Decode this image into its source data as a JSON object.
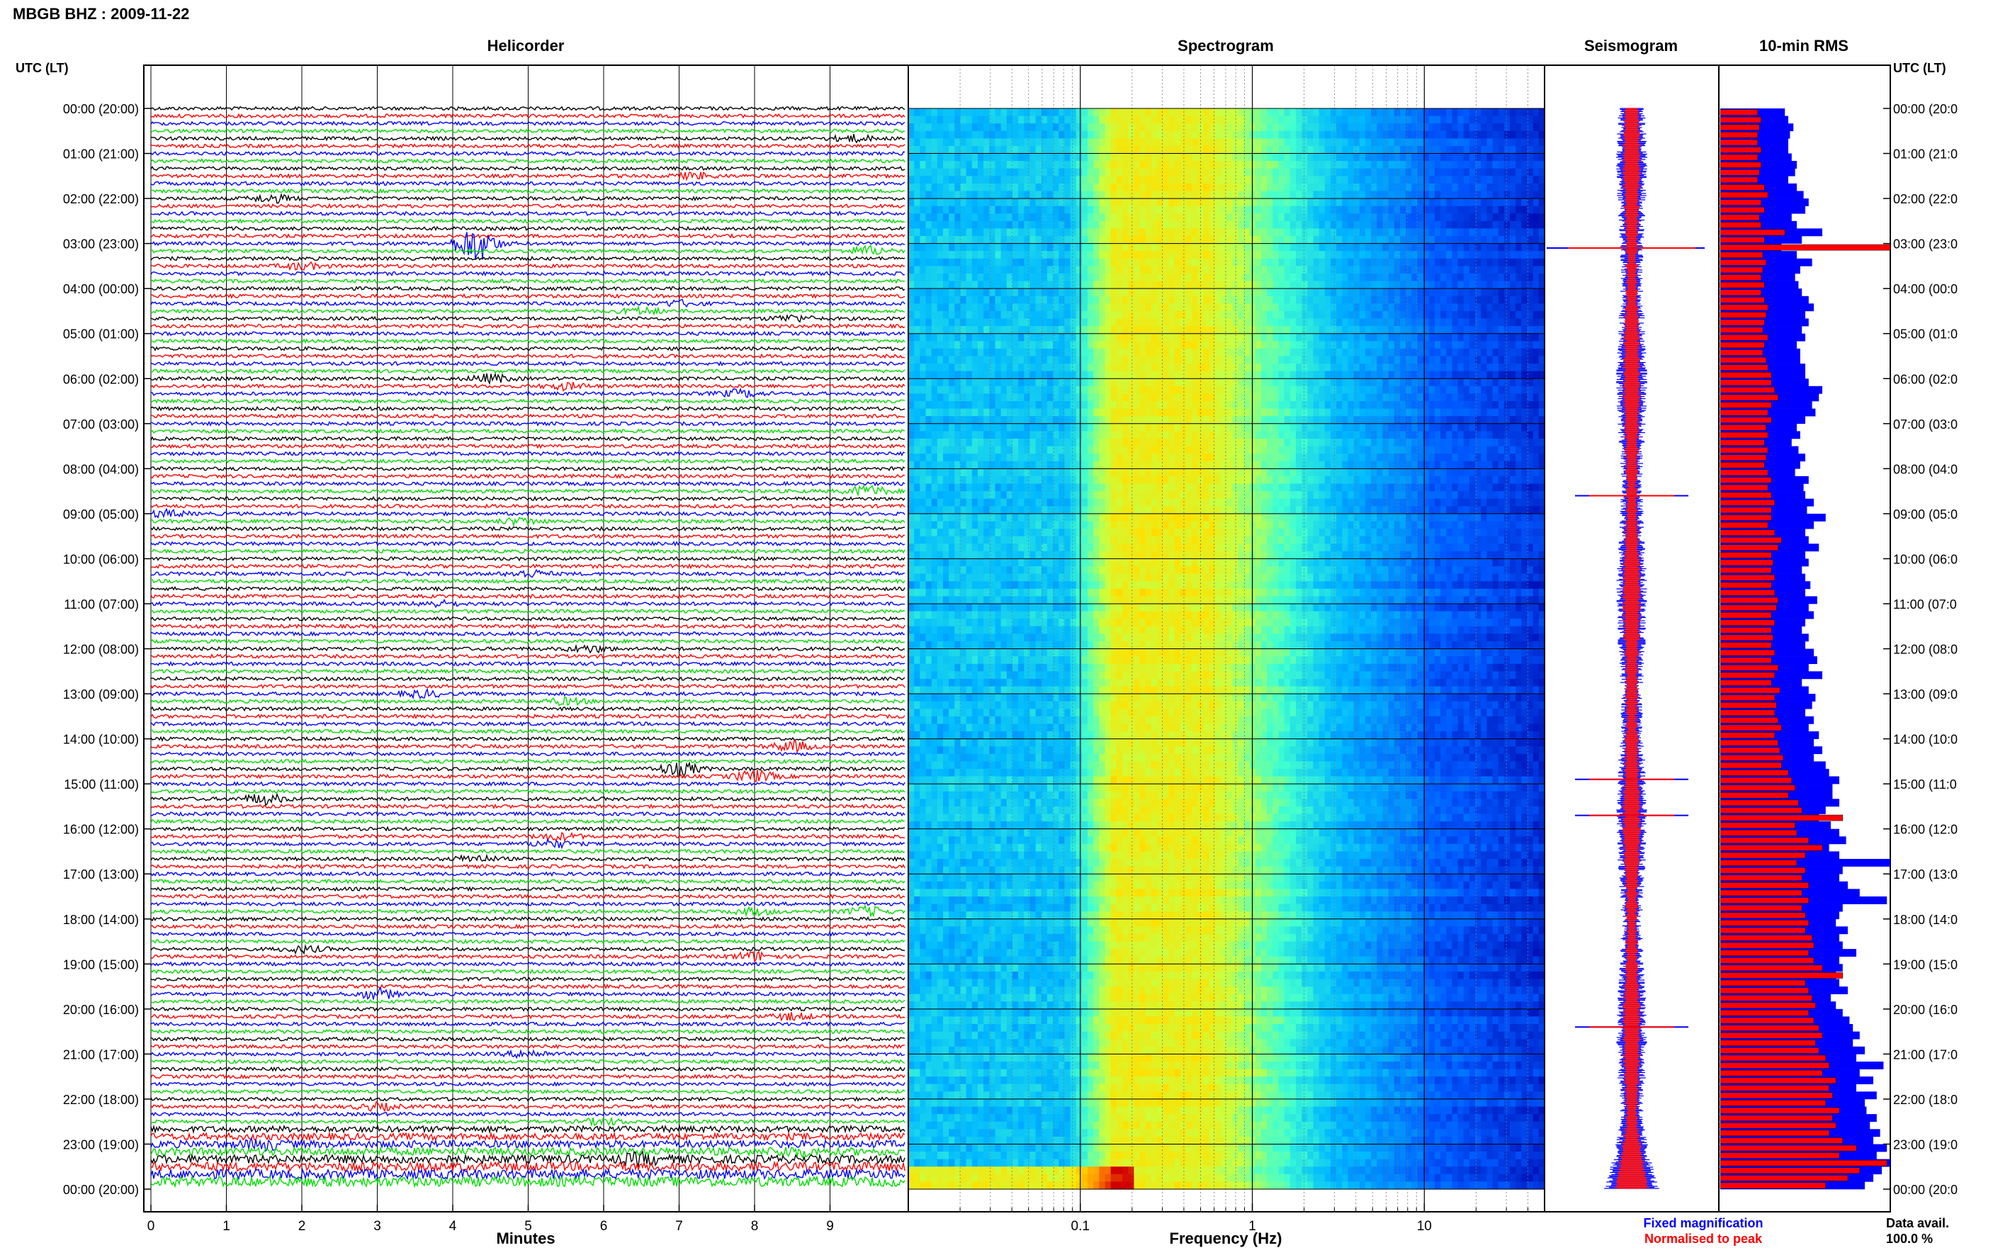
{
  "header": {
    "station_title": "MBGB BHZ : 2009-11-22"
  },
  "panels": {
    "helicorder": "Helicorder",
    "spectrogram": "Spectrogram",
    "seismogram": "Seismogram",
    "rms": "10-min RMS"
  },
  "axes": {
    "left_time_label": "UTC (LT)",
    "right_time_label": "UTC (LT)",
    "minutes_label": "Minutes",
    "frequency_label": "Frequency (Hz)"
  },
  "time_ticks": [
    "00:00 (20:00)",
    "01:00 (21:00)",
    "02:00 (22:00)",
    "03:00 (23:00)",
    "04:00 (00:00)",
    "05:00 (01:00)",
    "06:00 (02:00)",
    "07:00 (03:00)",
    "08:00 (04:00)",
    "09:00 (05:00)",
    "10:00 (06:00)",
    "11:00 (07:00)",
    "12:00 (08:00)",
    "13:00 (09:00)",
    "14:00 (10:00)",
    "15:00 (11:00)",
    "16:00 (12:00)",
    "17:00 (13:00)",
    "18:00 (14:00)",
    "19:00 (15:00)",
    "20:00 (16:00)",
    "21:00 (17:00)",
    "22:00 (18:00)",
    "23:00 (19:00)",
    "00:00 (20:00)"
  ],
  "right_time_ticks": [
    "00:00 (20:0",
    "01:00 (21:0",
    "02:00 (22:0",
    "03:00 (23:0",
    "04:00 (00:0",
    "05:00 (01:0",
    "06:00 (02:0",
    "07:00 (03:0",
    "08:00 (04:0",
    "09:00 (05:0",
    "10:00 (06:0",
    "11:00 (07:0",
    "12:00 (08:0",
    "13:00 (09:0",
    "14:00 (10:0",
    "15:00 (11:0",
    "16:00 (12:0",
    "17:00 (13:0",
    "18:00 (14:0",
    "19:00 (15:0",
    "20:00 (16:0",
    "21:00 (17:0",
    "22:00 (18:0",
    "23:00 (19:0",
    "00:00 (20:0"
  ],
  "legend": {
    "fixed": "Fixed magnification",
    "normalised": "Normalised to peak",
    "data_avail_label": "Data avail.",
    "data_avail_value": "100.0 %"
  },
  "colors": {
    "trace_cycle": [
      "#000000",
      "#ff0000",
      "#0000ff",
      "#00dd00"
    ],
    "fixed": "#0000ff",
    "normalised": "#ff0000"
  },
  "chart_data": [
    {
      "type": "line",
      "panel": "helicorder",
      "xlabel": "Minutes",
      "x_ticks": [
        "0",
        "1",
        "2",
        "3",
        "4",
        "5",
        "6",
        "7",
        "8",
        "9"
      ],
      "xlim": [
        0,
        10
      ],
      "rows_per_hour": 6,
      "bursts": [
        {
          "row": 4,
          "minute": 9.3,
          "amp": 1.6
        },
        {
          "row": 9,
          "minute": 7.2,
          "amp": 1.5
        },
        {
          "row": 12,
          "minute": 1.6,
          "amp": 1.8
        },
        {
          "row": 18,
          "minute": 4.3,
          "amp": 9.0
        },
        {
          "row": 19,
          "minute": 9.5,
          "amp": 2.2
        },
        {
          "row": 21,
          "minute": 2.0,
          "amp": 1.6
        },
        {
          "row": 26,
          "minute": 7.0,
          "amp": 1.4
        },
        {
          "row": 27,
          "minute": 6.5,
          "amp": 1.6
        },
        {
          "row": 28,
          "minute": 8.5,
          "amp": 1.6
        },
        {
          "row": 36,
          "minute": 4.5,
          "amp": 2.0
        },
        {
          "row": 37,
          "minute": 5.5,
          "amp": 1.6
        },
        {
          "row": 38,
          "minute": 7.8,
          "amp": 1.8
        },
        {
          "row": 51,
          "minute": 9.5,
          "amp": 2.5
        },
        {
          "row": 54,
          "minute": 0.2,
          "amp": 1.6
        },
        {
          "row": 55,
          "minute": 4.9,
          "amp": 1.6
        },
        {
          "row": 62,
          "minute": 5.0,
          "amp": 1.7
        },
        {
          "row": 66,
          "minute": 3.8,
          "amp": 1.4
        },
        {
          "row": 72,
          "minute": 5.8,
          "amp": 1.6
        },
        {
          "row": 78,
          "minute": 3.6,
          "amp": 1.7
        },
        {
          "row": 79,
          "minute": 5.5,
          "amp": 1.6
        },
        {
          "row": 85,
          "minute": 8.5,
          "amp": 2.4
        },
        {
          "row": 88,
          "minute": 7.0,
          "amp": 3.5
        },
        {
          "row": 89,
          "minute": 8.0,
          "amp": 2.8
        },
        {
          "row": 92,
          "minute": 1.5,
          "amp": 2.6
        },
        {
          "row": 97,
          "minute": 5.4,
          "amp": 1.8
        },
        {
          "row": 98,
          "minute": 5.3,
          "amp": 1.8
        },
        {
          "row": 100,
          "minute": 4.3,
          "amp": 1.7
        },
        {
          "row": 107,
          "minute": 8.0,
          "amp": 1.6
        },
        {
          "row": 107,
          "minute": 9.5,
          "amp": 2.2
        },
        {
          "row": 112,
          "minute": 2.0,
          "amp": 1.6
        },
        {
          "row": 113,
          "minute": 8.0,
          "amp": 2.2
        },
        {
          "row": 118,
          "minute": 3.0,
          "amp": 2.6
        },
        {
          "row": 121,
          "minute": 8.5,
          "amp": 1.6
        },
        {
          "row": 126,
          "minute": 5.0,
          "amp": 1.8
        },
        {
          "row": 133,
          "minute": 3.0,
          "amp": 1.7
        },
        {
          "row": 135,
          "minute": 6.0,
          "amp": 1.6
        },
        {
          "row": 138,
          "minute": 1.5,
          "amp": 2.0
        },
        {
          "row": 139,
          "minute": 8.5,
          "amp": 1.6
        },
        {
          "row": 140,
          "minute": 6.5,
          "amp": 2.0
        }
      ]
    },
    {
      "type": "heatmap",
      "panel": "spectrogram",
      "xlabel": "Frequency (Hz)",
      "x_scale": "log",
      "xlim": [
        0.01,
        50
      ],
      "x_ticks": [
        0.1,
        1,
        10
      ],
      "x_tick_labels": [
        "0.1",
        "1",
        "10"
      ],
      "peak_band_hz": [
        0.15,
        0.6
      ],
      "colormap": [
        "#0000a8",
        "#0058ff",
        "#00b8ff",
        "#40ffd0",
        "#c8ff40",
        "#ffe000",
        "#ff8000",
        "#d00000"
      ]
    },
    {
      "type": "line",
      "panel": "seismogram",
      "series": [
        {
          "name": "Fixed magnification",
          "color": "#0000ff"
        },
        {
          "name": "Normalised to peak",
          "color": "#ff0000"
        }
      ],
      "spikes_hour": [
        3.1,
        8.6,
        14.9,
        15.7,
        20.4
      ]
    },
    {
      "type": "bar",
      "panel": "rms",
      "series": [
        {
          "name": "Fixed magnification",
          "color": "#0000ff",
          "values": [
            0.38,
            0.4,
            0.43,
            0.41,
            0.4,
            0.4,
            0.42,
            0.45,
            0.44,
            0.4,
            0.45,
            0.49,
            0.52,
            0.5,
            0.42,
            0.45,
            0.6,
            0.48,
            0.36,
            0.45,
            0.54,
            0.47,
            0.44,
            0.46,
            0.48,
            0.52,
            0.55,
            0.5,
            0.52,
            0.48,
            0.5,
            0.45,
            0.47,
            0.47,
            0.5,
            0.5,
            0.52,
            0.6,
            0.58,
            0.54,
            0.56,
            0.5,
            0.45,
            0.47,
            0.42,
            0.46,
            0.5,
            0.47,
            0.44,
            0.52,
            0.49,
            0.5,
            0.55,
            0.51,
            0.62,
            0.55,
            0.5,
            0.52,
            0.58,
            0.5,
            0.52,
            0.48,
            0.5,
            0.53,
            0.5,
            0.57,
            0.52,
            0.55,
            0.5,
            0.48,
            0.52,
            0.5,
            0.55,
            0.57,
            0.52,
            0.6,
            0.48,
            0.52,
            0.56,
            0.54,
            0.5,
            0.55,
            0.52,
            0.58,
            0.55,
            0.6,
            0.55,
            0.62,
            0.64,
            0.7,
            0.66,
            0.66,
            0.7,
            0.62,
            0.58,
            0.65,
            0.7,
            0.74,
            0.64,
            0.7,
            1.0,
            0.72,
            0.7,
            0.75,
            0.82,
            0.98,
            0.72,
            0.7,
            0.68,
            0.75,
            0.7,
            0.72,
            0.8,
            0.7,
            0.72,
            0.68,
            0.7,
            0.75,
            0.65,
            0.68,
            0.72,
            0.76,
            0.78,
            0.82,
            0.78,
            0.85,
            0.8,
            0.96,
            0.82,
            0.9,
            0.8,
            0.92,
            0.85,
            0.86,
            0.92,
            0.88,
            0.94,
            0.9,
            0.98,
            0.92,
            1.0,
            0.95,
            0.9,
            0.85
          ]
        },
        {
          "name": "Normalised to peak",
          "color": "#ff0000",
          "values": [
            0.22,
            0.24,
            0.23,
            0.22,
            0.22,
            0.24,
            0.22,
            0.24,
            0.23,
            0.22,
            0.26,
            0.28,
            0.24,
            0.26,
            0.23,
            0.24,
            0.38,
            0.26,
            1.0,
            0.25,
            0.27,
            0.25,
            0.24,
            0.26,
            0.24,
            0.26,
            0.28,
            0.27,
            0.26,
            0.25,
            0.28,
            0.26,
            0.25,
            0.27,
            0.28,
            0.3,
            0.3,
            0.32,
            0.34,
            0.3,
            0.28,
            0.3,
            0.27,
            0.28,
            0.26,
            0.28,
            0.27,
            0.26,
            0.28,
            0.3,
            0.28,
            0.3,
            0.32,
            0.3,
            0.3,
            0.28,
            0.32,
            0.36,
            0.34,
            0.3,
            0.31,
            0.3,
            0.32,
            0.3,
            0.32,
            0.34,
            0.33,
            0.3,
            0.32,
            0.3,
            0.31,
            0.3,
            0.32,
            0.3,
            0.34,
            0.32,
            0.3,
            0.35,
            0.32,
            0.33,
            0.32,
            0.34,
            0.36,
            0.32,
            0.34,
            0.35,
            0.37,
            0.36,
            0.4,
            0.42,
            0.44,
            0.4,
            0.46,
            0.48,
            0.72,
            0.44,
            0.45,
            0.52,
            0.6,
            0.5,
            0.45,
            0.5,
            0.48,
            0.52,
            0.48,
            0.52,
            0.48,
            0.5,
            0.52,
            0.5,
            0.54,
            0.55,
            0.52,
            0.55,
            0.6,
            0.72,
            0.5,
            0.52,
            0.54,
            0.56,
            0.52,
            0.55,
            0.58,
            0.6,
            0.56,
            0.58,
            0.62,
            0.64,
            0.6,
            0.68,
            0.64,
            0.66,
            0.62,
            0.7,
            0.66,
            0.68,
            0.64,
            0.72,
            0.8,
            0.7,
            0.98,
            0.82,
            0.75,
            0.62
          ]
        }
      ]
    }
  ]
}
